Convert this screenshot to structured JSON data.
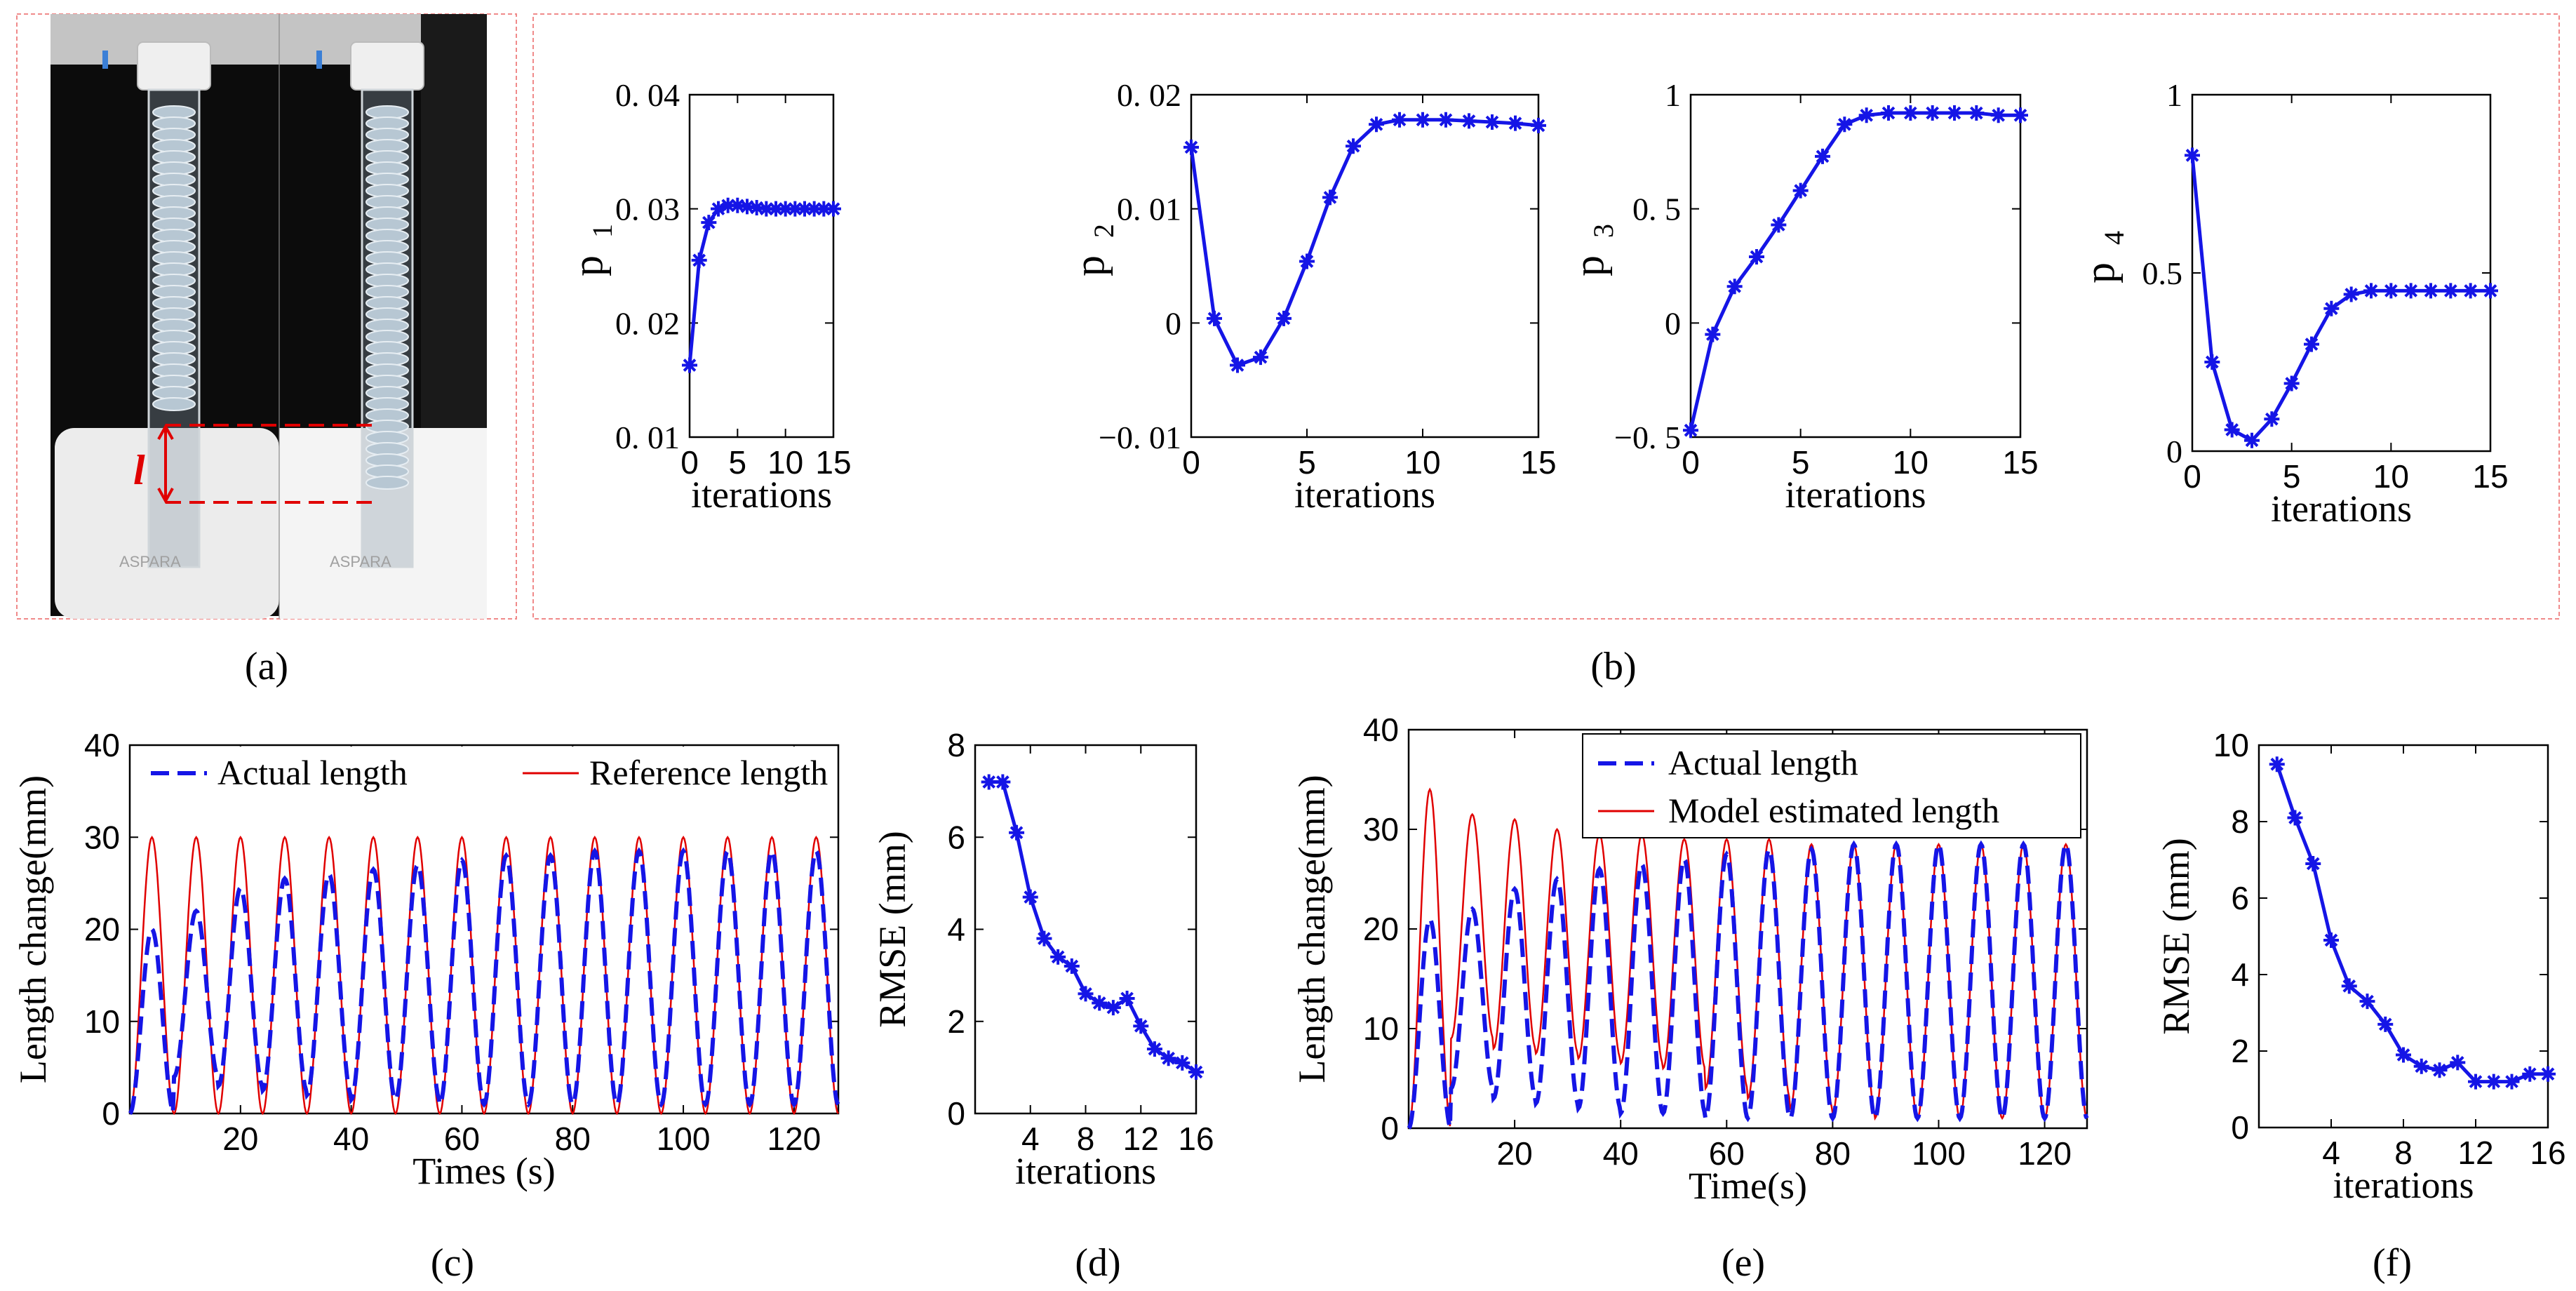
{
  "colors": {
    "actual": "#1515e6",
    "reference": "#e00000",
    "frame": "#f08a8a",
    "axis": "#000000"
  },
  "panel_labels": [
    "(a)",
    "(b)",
    "(c)",
    "(d)",
    "(e)",
    "(f)"
  ],
  "photo": {
    "annotation": "l",
    "brand_text": "ASPARA"
  },
  "chart_data": [
    {
      "id": "b1",
      "type": "line",
      "marker": "asterisk",
      "xlabel": "iterations",
      "ylabel": "p",
      "ylabel_sub": "1",
      "xlim": [
        0,
        15
      ],
      "ylim": [
        0.01,
        0.04
      ],
      "xticks": [
        0,
        5,
        10,
        15
      ],
      "yticks": [
        0.01,
        0.02,
        0.03,
        0.04
      ],
      "ytick_labels": [
        "0. 01",
        "0. 02",
        "0. 03",
        "0. 04"
      ],
      "x": [
        0,
        1,
        2,
        3,
        4,
        5,
        6,
        7,
        8,
        9,
        10,
        11,
        12,
        13,
        14,
        15
      ],
      "series": [
        {
          "values": [
            0.0163,
            0.0255,
            0.0288,
            0.03,
            0.0303,
            0.0303,
            0.0302,
            0.0301,
            0.03,
            0.03,
            0.03,
            0.03,
            0.03,
            0.03,
            0.03,
            0.03
          ]
        }
      ]
    },
    {
      "id": "b2",
      "type": "line",
      "marker": "asterisk",
      "xlabel": "iterations",
      "ylabel": "p",
      "ylabel_sub": "2",
      "xlim": [
        0,
        15
      ],
      "ylim": [
        -0.01,
        0.02
      ],
      "xticks": [
        0,
        5,
        10,
        15
      ],
      "yticks": [
        -0.01,
        0,
        0.01,
        0.02
      ],
      "ytick_labels": [
        "−0. 01",
        "0",
        "0. 01",
        "0. 02"
      ],
      "x": [
        0,
        1,
        2,
        3,
        4,
        5,
        6,
        7,
        8,
        9,
        10,
        11,
        12,
        13,
        14,
        15
      ],
      "series": [
        {
          "values": [
            0.0154,
            0.0004,
            -0.0037,
            -0.003,
            0.0004,
            0.0054,
            0.011,
            0.0155,
            0.0174,
            0.0178,
            0.0178,
            0.0178,
            0.0177,
            0.0176,
            0.0175,
            0.0173
          ]
        }
      ]
    },
    {
      "id": "b3",
      "type": "line",
      "marker": "asterisk",
      "xlabel": "iterations",
      "ylabel": "p",
      "ylabel_sub": "3",
      "xlim": [
        0,
        15
      ],
      "ylim": [
        -0.5,
        1
      ],
      "xticks": [
        0,
        5,
        10,
        15
      ],
      "yticks": [
        -0.5,
        0,
        0.5,
        1
      ],
      "ytick_labels": [
        "−0. 5",
        "0",
        "0. 5",
        "1"
      ],
      "x": [
        0,
        1,
        2,
        3,
        4,
        5,
        6,
        7,
        8,
        9,
        10,
        11,
        12,
        13,
        14,
        15
      ],
      "series": [
        {
          "values": [
            -0.47,
            -0.05,
            0.16,
            0.29,
            0.43,
            0.58,
            0.73,
            0.87,
            0.91,
            0.92,
            0.92,
            0.92,
            0.92,
            0.92,
            0.91,
            0.91
          ]
        }
      ]
    },
    {
      "id": "b4",
      "type": "line",
      "marker": "asterisk",
      "xlabel": "iterations",
      "ylabel": "p",
      "ylabel_sub": "4",
      "xlim": [
        0,
        15
      ],
      "ylim": [
        0,
        1
      ],
      "xticks": [
        0,
        5,
        10,
        15
      ],
      "yticks": [
        0,
        0.5,
        1
      ],
      "ytick_labels": [
        "0",
        "0.5",
        "1"
      ],
      "x": [
        0,
        1,
        2,
        3,
        4,
        5,
        6,
        7,
        8,
        9,
        10,
        11,
        12,
        13,
        14,
        15
      ],
      "series": [
        {
          "values": [
            0.83,
            0.25,
            0.06,
            0.03,
            0.09,
            0.19,
            0.3,
            0.4,
            0.44,
            0.45,
            0.45,
            0.45,
            0.45,
            0.45,
            0.45,
            0.45
          ]
        }
      ]
    },
    {
      "id": "c",
      "type": "line",
      "xlabel": "Times (s)",
      "ylabel": "Length change(mm)",
      "xlim": [
        0,
        128
      ],
      "ylim": [
        0,
        40
      ],
      "xticks": [
        20,
        40,
        60,
        80,
        100,
        120
      ],
      "yticks": [
        0,
        10,
        20,
        30,
        40
      ],
      "legend": "top",
      "period": 8,
      "series": [
        {
          "name": "Actual length",
          "style": "dashed",
          "peaks": [
            20,
            22,
            24.5,
            25.5,
            26,
            26.5,
            27,
            27.5,
            28,
            28,
            28.5,
            28.5,
            28.5,
            28.5,
            28.5,
            28.5
          ],
          "troughs": [
            0,
            4,
            3,
            2.5,
            2,
            1.5,
            1.5,
            1,
            1,
            1,
            1,
            1,
            1,
            1,
            1,
            1
          ]
        },
        {
          "name": "Reference length",
          "style": "solid",
          "amplitude": 30,
          "baseline": 0
        }
      ]
    },
    {
      "id": "d",
      "type": "line",
      "marker": "asterisk",
      "xlabel": "iterations",
      "ylabel": "RMSE (mm)",
      "xlim": [
        0,
        16
      ],
      "ylim": [
        0,
        8
      ],
      "xticks": [
        4,
        8,
        12,
        16
      ],
      "yticks": [
        0,
        2,
        4,
        6,
        8
      ],
      "x": [
        1,
        2,
        3,
        4,
        5,
        6,
        7,
        8,
        9,
        10,
        11,
        12,
        13,
        14,
        15,
        16
      ],
      "series": [
        {
          "values": [
            7.2,
            7.2,
            6.1,
            4.7,
            3.8,
            3.4,
            3.2,
            2.6,
            2.4,
            2.3,
            2.5,
            1.9,
            1.4,
            1.2,
            1.1,
            0.9
          ]
        }
      ]
    },
    {
      "id": "e",
      "type": "line",
      "xlabel": "Time(s)",
      "ylabel": "Length change(mm)",
      "xlim": [
        0,
        128
      ],
      "ylim": [
        0,
        40
      ],
      "xticks": [
        20,
        40,
        60,
        80,
        100,
        120
      ],
      "yticks": [
        0,
        10,
        20,
        30,
        40
      ],
      "legend": "top-right",
      "period": 8,
      "series": [
        {
          "name": "Actual length",
          "style": "dashed",
          "peaks": [
            21,
            22,
            24,
            25,
            26,
            26.5,
            27,
            27.5,
            28,
            28,
            28.5,
            28.5,
            28.5,
            28.5,
            28.5,
            28.5
          ],
          "troughs": [
            0,
            4,
            3,
            2.5,
            2,
            1.5,
            1.5,
            1,
            1,
            1,
            1,
            1,
            1,
            1,
            1,
            1
          ]
        },
        {
          "name": "Model estimated length",
          "style": "solid",
          "peaks": [
            34,
            31.5,
            31,
            30,
            29.5,
            29.5,
            29,
            29,
            29,
            28.5,
            28.5,
            28.5,
            28.5,
            28.5,
            28.5,
            28.5
          ],
          "troughs": [
            0,
            9,
            8,
            7.5,
            7,
            6.5,
            6,
            4,
            3,
            2,
            1.5,
            1,
            1,
            1,
            1,
            1
          ]
        }
      ]
    },
    {
      "id": "f",
      "type": "line",
      "marker": "asterisk",
      "xlabel": "iterations",
      "ylabel": "RMSE (mm)",
      "xlim": [
        0,
        16
      ],
      "ylim": [
        0,
        10
      ],
      "xticks": [
        4,
        8,
        12,
        16
      ],
      "yticks": [
        0,
        2,
        4,
        6,
        8,
        10
      ],
      "x": [
        1,
        2,
        3,
        4,
        5,
        6,
        7,
        8,
        9,
        10,
        11,
        12,
        13,
        14,
        15,
        16
      ],
      "series": [
        {
          "values": [
            9.5,
            8.1,
            6.9,
            4.9,
            3.7,
            3.3,
            2.7,
            1.9,
            1.6,
            1.5,
            1.7,
            1.2,
            1.2,
            1.2,
            1.4,
            1.4
          ]
        }
      ]
    }
  ]
}
